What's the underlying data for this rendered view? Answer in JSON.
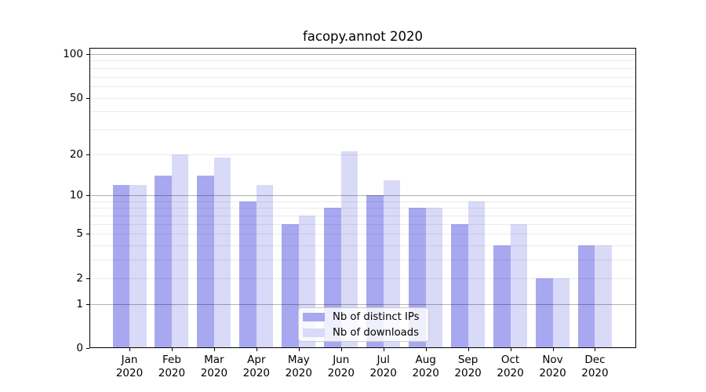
{
  "chart_data": {
    "type": "bar",
    "title": "facopy.annot 2020",
    "xlabel": "",
    "ylabel": "",
    "categories": [
      "Jan 2020",
      "Feb 2020",
      "Mar 2020",
      "Apr 2020",
      "May 2020",
      "Jun 2020",
      "Jul 2020",
      "Aug 2020",
      "Sep 2020",
      "Oct 2020",
      "Nov 2020",
      "Dec 2020"
    ],
    "series": [
      {
        "name": "Nb of distinct IPs",
        "color": "#a8a8f0",
        "values": [
          12,
          14,
          14,
          9,
          6,
          8,
          10,
          8,
          6,
          4,
          2,
          4
        ]
      },
      {
        "name": "Nb of downloads",
        "color": "#d9d9f8",
        "values": [
          12,
          20,
          19,
          12,
          7,
          21,
          13,
          8,
          9,
          6,
          2,
          4
        ]
      }
    ],
    "scale": "log10(1+x)",
    "ylim": [
      0,
      110
    ],
    "yticks": [
      0,
      1,
      2,
      5,
      10,
      20,
      50,
      100
    ],
    "major_gridlines": [
      1,
      10,
      100
    ],
    "minor_gridlines": [
      2,
      3,
      4,
      5,
      6,
      7,
      8,
      9,
      20,
      30,
      40,
      50,
      60,
      70,
      80,
      90
    ],
    "grid": true,
    "legend_position": "bottom-center-inside",
    "colors": {
      "background": "#ffffff",
      "axis": "#000000",
      "major_grid": "rgba(0,0,0,0.30)",
      "minor_grid": "rgba(0,0,0,0.08)",
      "text": "#000000",
      "legend_border": "#cbcbcb"
    }
  }
}
